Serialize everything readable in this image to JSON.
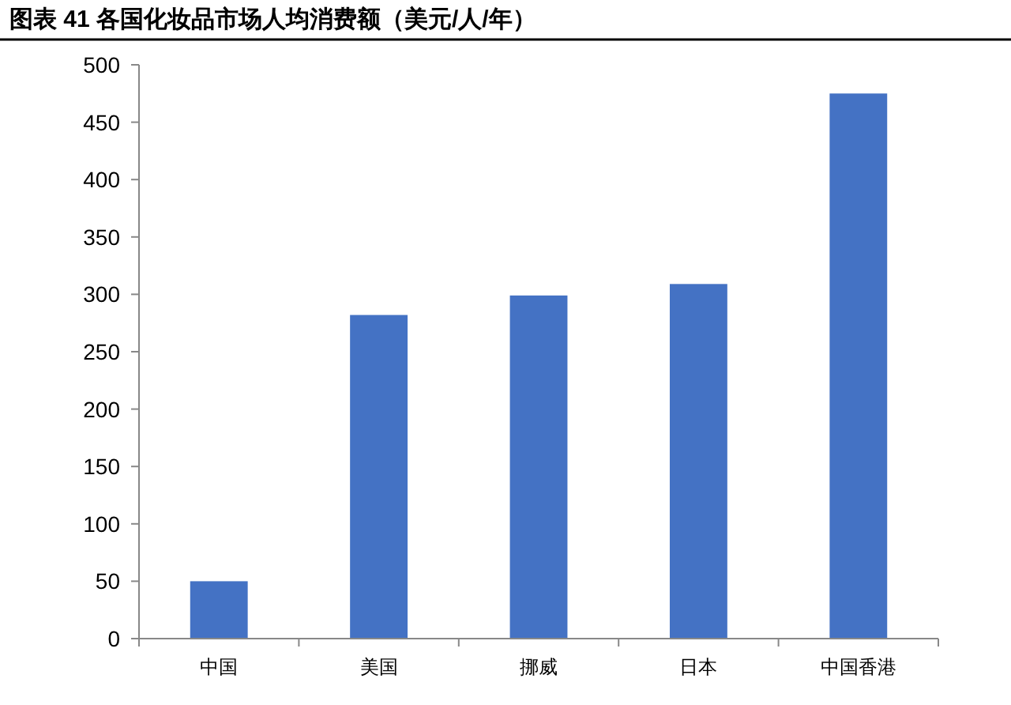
{
  "chart_data": {
    "type": "bar",
    "title": "图表 41 各国化妆品市场人均消费额（美元/人/年）",
    "categories": [
      "中国",
      "美国",
      "挪威",
      "日本",
      "中国香港"
    ],
    "values": [
      50,
      282,
      299,
      309,
      475
    ],
    "color": "#4472c4",
    "ylim": [
      0,
      500
    ],
    "yticks": [
      0,
      50,
      100,
      150,
      200,
      250,
      300,
      350,
      400,
      450,
      500
    ],
    "grid": false
  }
}
